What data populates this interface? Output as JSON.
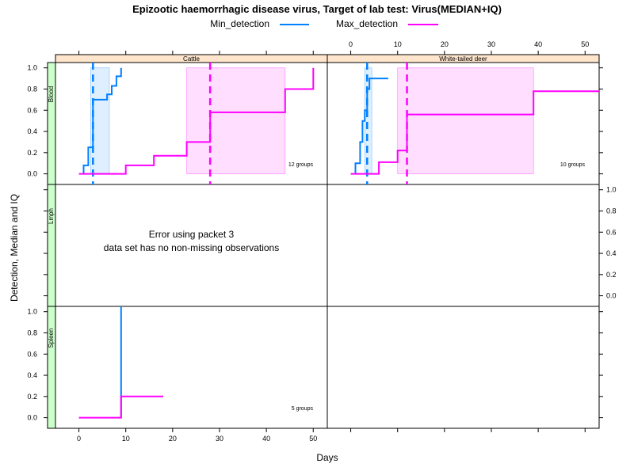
{
  "chart_data": {
    "type": "line",
    "title": "Epizootic haemorrhagic disease virus, Target of lab test: Virus(MEDIAN+IQ)",
    "xlabel": "Days",
    "ylabel": "Detection, Median and IQ",
    "xlim": [
      -5,
      53
    ],
    "ylim": [
      -0.1,
      1.05
    ],
    "x_ticks": [
      0,
      10,
      20,
      30,
      40,
      50
    ],
    "y_ticks": [
      0.0,
      0.2,
      0.4,
      0.6,
      0.8,
      1.0
    ],
    "x_tick_labels": [
      "0",
      "10",
      "20",
      "30",
      "40",
      "50"
    ],
    "y_tick_labels": [
      "0.0",
      "0.2",
      "0.4",
      "0.6",
      "0.8",
      "1.0"
    ],
    "legend": {
      "placement": "top",
      "entries": [
        {
          "name": "Min_detection",
          "color": "#0080ff"
        },
        {
          "name": "Max_detection",
          "color": "#ff00ff"
        }
      ]
    },
    "columns": [
      "Cattle",
      "White-tailed deer"
    ],
    "rows": [
      "Blood",
      "Lmph",
      "Spleen"
    ],
    "panels": [
      {
        "row": 0,
        "col": 0,
        "groups_label": "12 groups",
        "series": [
          {
            "name": "Min_detection",
            "steps": [
              [
                1,
                0
              ],
              [
                1,
                0.08
              ],
              [
                2,
                0.08
              ],
              [
                2,
                0.25
              ],
              [
                3,
                0.25
              ],
              [
                3,
                0.7
              ],
              [
                4,
                0.7
              ],
              [
                5,
                0.7
              ],
              [
                6,
                0.7
              ],
              [
                6,
                0.75
              ],
              [
                7,
                0.75
              ],
              [
                7,
                0.83
              ],
              [
                8,
                0.83
              ],
              [
                8,
                0.92
              ],
              [
                9,
                0.92
              ],
              [
                9,
                1.0
              ]
            ],
            "median": 3,
            "iq": [
              2.5,
              6.5
            ]
          },
          {
            "name": "Max_detection",
            "steps": [
              [
                0,
                0
              ],
              [
                10,
                0
              ],
              [
                10,
                0.08
              ],
              [
                16,
                0.08
              ],
              [
                16,
                0.17
              ],
              [
                23,
                0.17
              ],
              [
                23,
                0.3
              ],
              [
                28,
                0.3
              ],
              [
                28,
                0.58
              ],
              [
                44,
                0.58
              ],
              [
                44,
                0.8
              ],
              [
                50,
                0.8
              ],
              [
                50,
                1.0
              ]
            ],
            "median": 28,
            "iq": [
              23,
              44
            ]
          }
        ]
      },
      {
        "row": 0,
        "col": 1,
        "groups_label": "10 groups",
        "series": [
          {
            "name": "Min_detection",
            "steps": [
              [
                1,
                0
              ],
              [
                1,
                0.1
              ],
              [
                2,
                0.1
              ],
              [
                2,
                0.3
              ],
              [
                2.5,
                0.3
              ],
              [
                2.5,
                0.5
              ],
              [
                3,
                0.5
              ],
              [
                3,
                0.6
              ],
              [
                3.5,
                0.6
              ],
              [
                3.5,
                0.8
              ],
              [
                4,
                0.8
              ],
              [
                4,
                0.9
              ],
              [
                5,
                0.9
              ],
              [
                5,
                0.9
              ],
              [
                8,
                0.9
              ]
            ],
            "median": 3.5,
            "iq": [
              3,
              4.5
            ]
          },
          {
            "name": "Max_detection",
            "steps": [
              [
                0,
                0
              ],
              [
                6,
                0
              ],
              [
                6,
                0.11
              ],
              [
                10,
                0.11
              ],
              [
                10,
                0.22
              ],
              [
                12,
                0.22
              ],
              [
                12,
                0.56
              ],
              [
                39,
                0.56
              ],
              [
                39,
                0.78
              ],
              [
                53,
                0.78
              ]
            ],
            "median": 12,
            "iq": [
              10,
              39
            ]
          }
        ]
      },
      {
        "row": 1,
        "col": 0,
        "error_lines": [
          "Error using packet 3",
          "data set has no non-missing observations"
        ],
        "series": []
      },
      {
        "row": 1,
        "col": 1,
        "series": []
      },
      {
        "row": 2,
        "col": 0,
        "groups_label": "5 groups",
        "series": [
          {
            "name": "Min_detection",
            "steps": [
              [
                9,
                0
              ],
              [
                9,
                1.05
              ]
            ]
          },
          {
            "name": "Max_detection",
            "steps": [
              [
                0,
                0
              ],
              [
                9,
                0
              ],
              [
                9,
                0.2
              ],
              [
                18,
                0.2
              ]
            ]
          }
        ]
      },
      {
        "row": 2,
        "col": 1,
        "series": []
      }
    ]
  }
}
